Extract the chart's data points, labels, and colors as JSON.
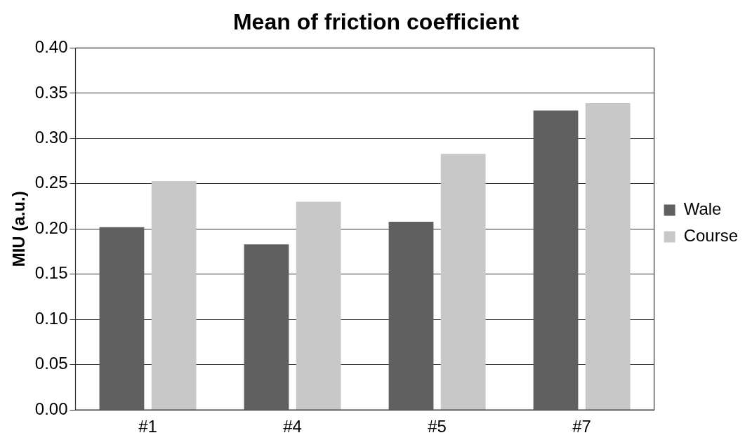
{
  "chart_data": {
    "type": "bar",
    "title": "Mean of friction coefficient",
    "ylabel": "MIU (a.u.)",
    "categories": [
      "#1",
      "#4",
      "#5",
      "#7"
    ],
    "series": [
      {
        "name": "Wale",
        "color": "#606060",
        "values": [
          0.202,
          0.183,
          0.208,
          0.331
        ]
      },
      {
        "name": "Course",
        "color": "#c8c8c8",
        "values": [
          0.253,
          0.23,
          0.283,
          0.339
        ]
      }
    ],
    "ylim": [
      0,
      0.4
    ],
    "yticks": [
      {
        "value": 0,
        "label": "0.00"
      },
      {
        "value": 0.05,
        "label": "0.05"
      },
      {
        "value": 0.1,
        "label": "0.10"
      },
      {
        "value": 0.15,
        "label": "0.15"
      },
      {
        "value": 0.2,
        "label": "0.20"
      },
      {
        "value": 0.25,
        "label": "0.25"
      },
      {
        "value": 0.3,
        "label": "0.30"
      },
      {
        "value": 0.35,
        "label": "0.35"
      },
      {
        "value": 0.4,
        "label": "0.40"
      }
    ],
    "grid": "y",
    "legend": "right"
  }
}
